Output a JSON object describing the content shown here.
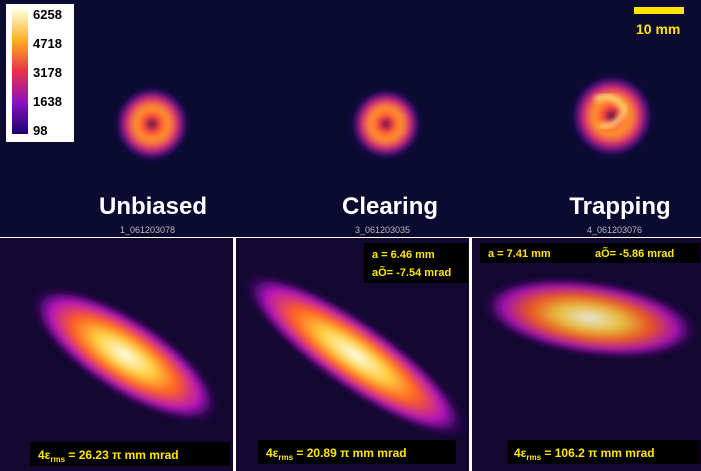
{
  "colorbar": {
    "ticks": [
      "6258",
      "4718",
      "3178",
      "1638",
      "98"
    ]
  },
  "scale_bar": {
    "label": "10 mm"
  },
  "top_panels": [
    {
      "label": "Unbiased",
      "id": "1_061203078"
    },
    {
      "label": "Clearing",
      "id": "3_061203035"
    },
    {
      "label": "Trapping",
      "id": "4_061203076"
    }
  ],
  "bottom_panels": [
    {
      "emittance": {
        "prefix": "4ε",
        "sub": "rms",
        "rest": " = 26.23 π mm mrad"
      }
    },
    {
      "a": "a = 6.46 mm",
      "a_prime": "aÕ= -7.54 mrad",
      "emittance": {
        "prefix": "4ε",
        "sub": "rms",
        "rest": " = 20.89 π mm mrad"
      }
    },
    {
      "a": "a = 7.41 mm",
      "a_prime": "aÕ= -5.86 mrad",
      "emittance": {
        "prefix": "4ε",
        "sub": "rms",
        "rest": " = 106.2 π mm mrad"
      }
    }
  ]
}
